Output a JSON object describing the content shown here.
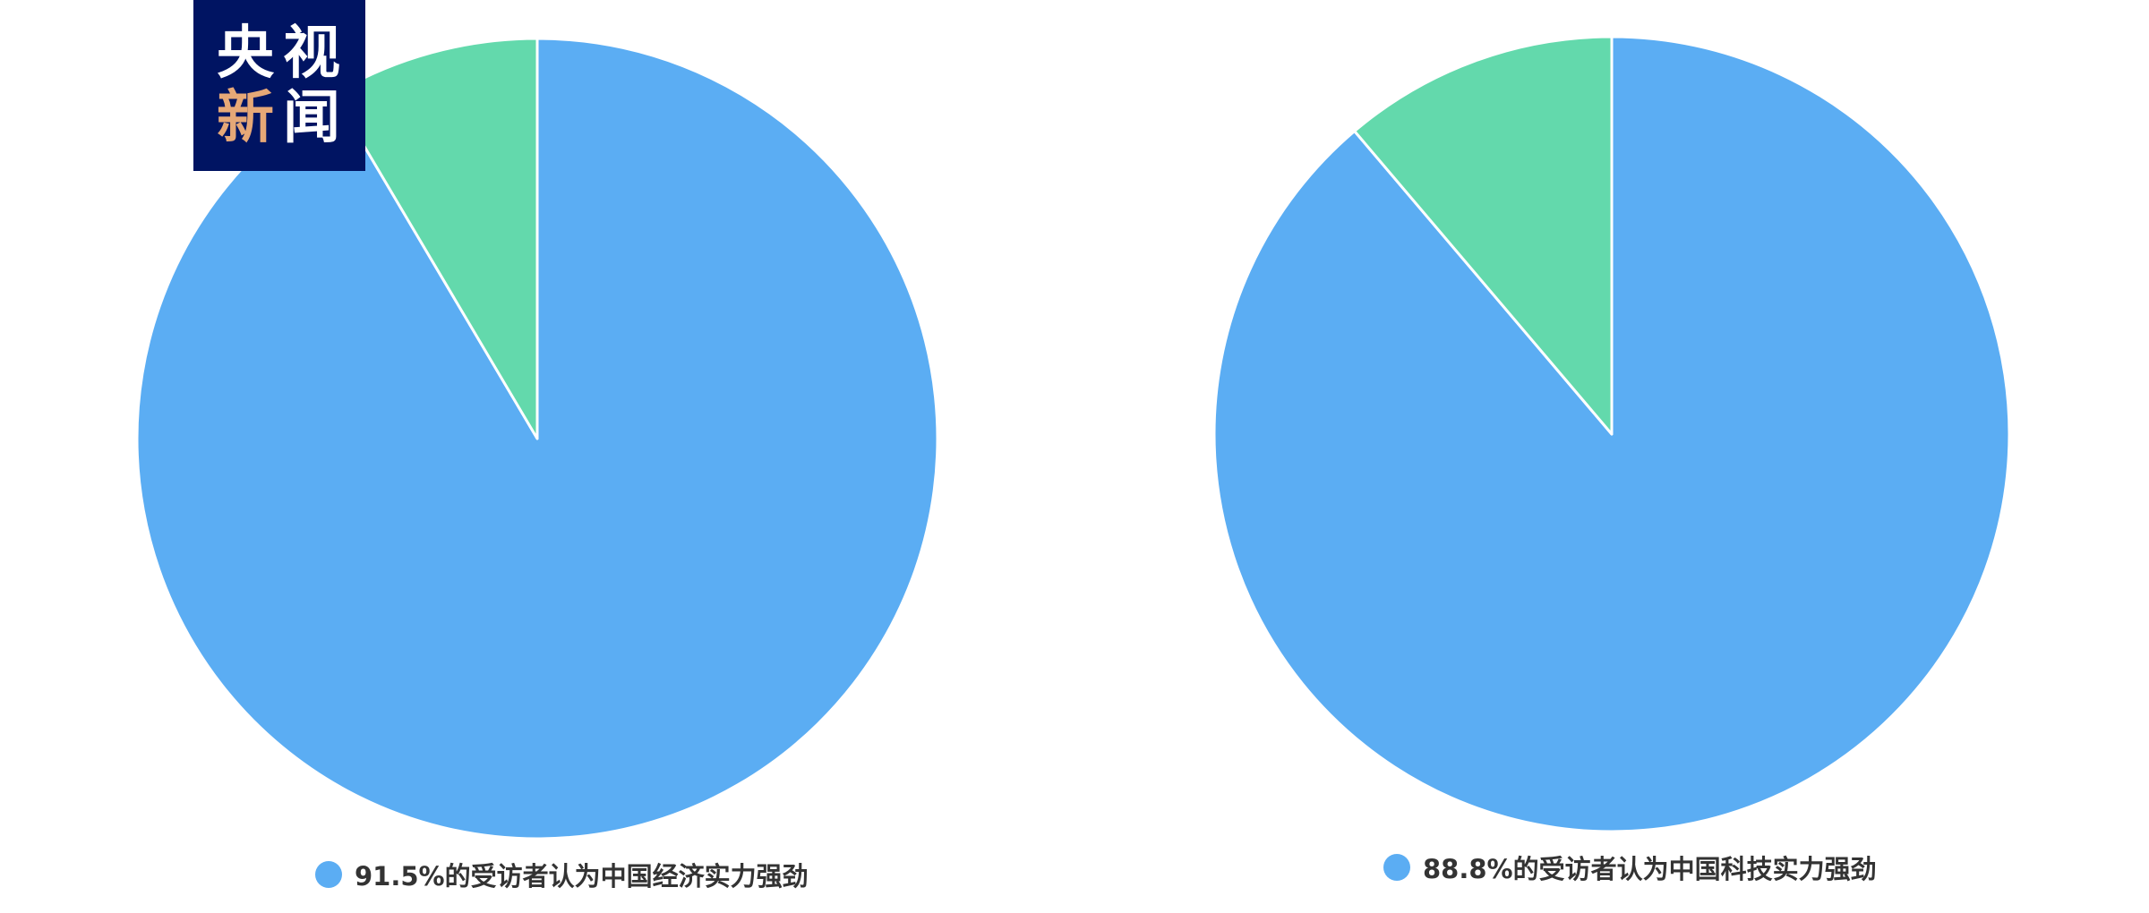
{
  "logo": {
    "line1_a": "央",
    "line1_b": "视",
    "line2_a": "新",
    "line2_b": "闻"
  },
  "colors": {
    "blue": "#5BADF3",
    "green": "#63D9AC",
    "logo_bg": "#001462",
    "logo_accent": "#E6A877"
  },
  "chart_data": [
    {
      "type": "pie",
      "start": "12 o'clock, clockwise",
      "slices": [
        {
          "label": "91.5%的受访者认为中国经济实力强劲",
          "value": 91.5,
          "color": "#5BADF3"
        },
        {
          "label": "",
          "value": 8.5,
          "color": "#63D9AC"
        }
      ],
      "legend": "91.5%的受访者认为中国经济实力强劲",
      "legend_placement": "bottom"
    },
    {
      "type": "pie",
      "start": "12 o'clock, clockwise",
      "slices": [
        {
          "label": "88.8%的受访者认为中国科技实力强劲",
          "value": 88.8,
          "color": "#5BADF3"
        },
        {
          "label": "",
          "value": 11.2,
          "color": "#63D9AC"
        }
      ],
      "legend": "88.8%的受访者认为中国科技实力强劲",
      "legend_placement": "bottom"
    }
  ]
}
